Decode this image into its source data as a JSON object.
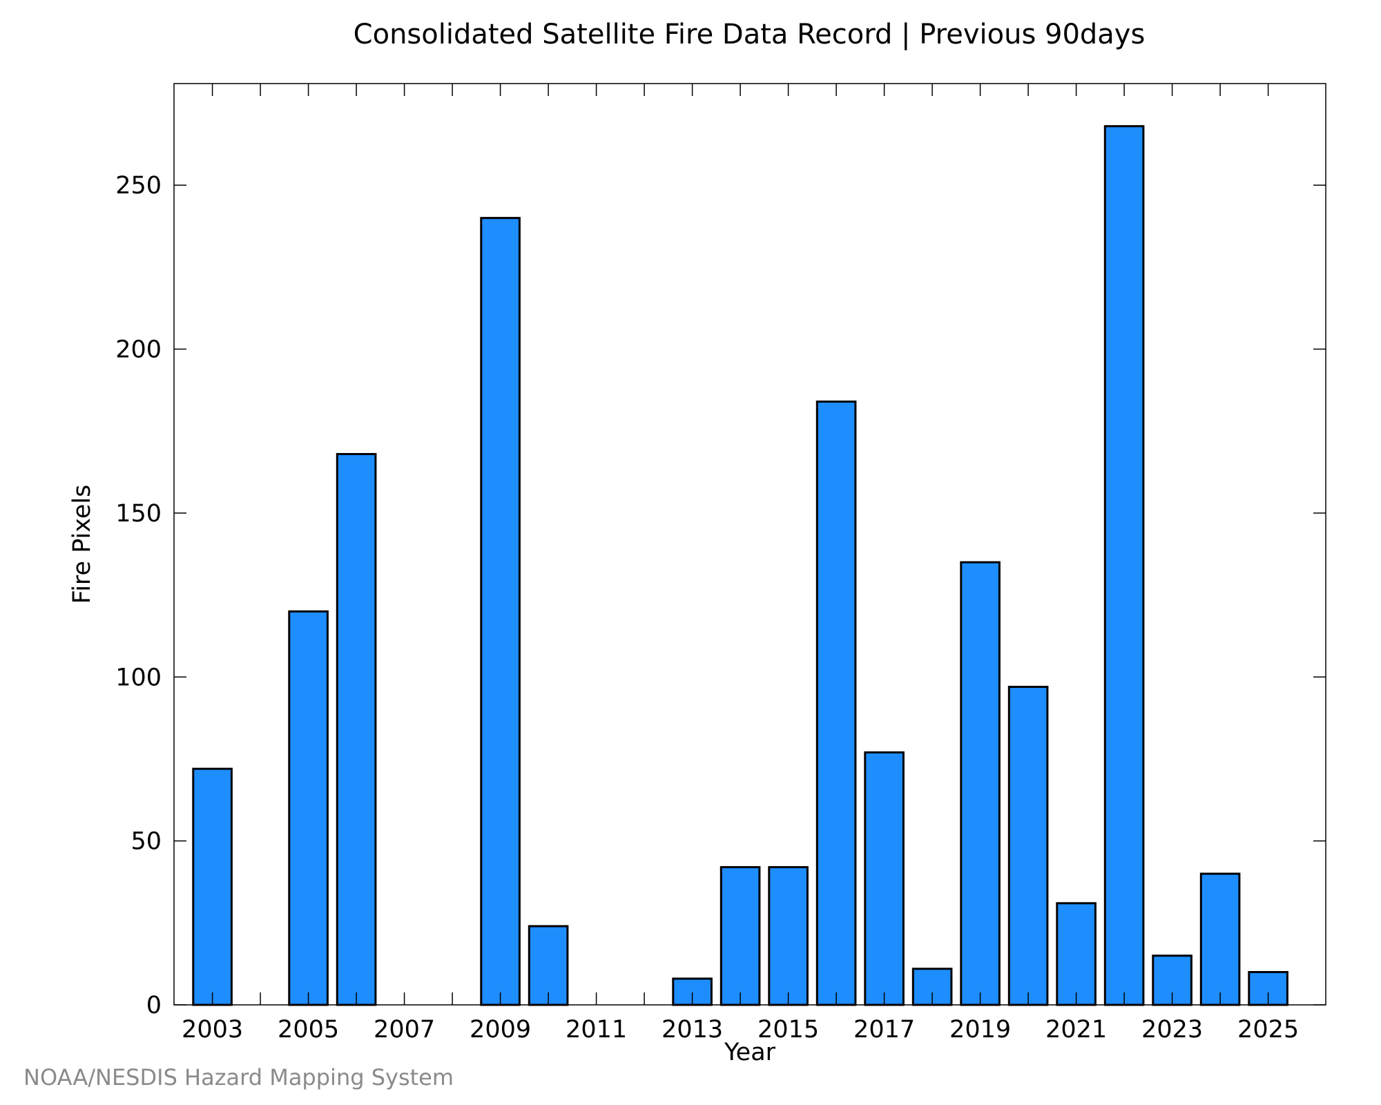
{
  "chart_data": {
    "type": "bar",
    "title": "Consolidated Satellite Fire Data Record | Previous 90days",
    "xlabel": "Year",
    "ylabel": "Fire Pixels",
    "categories": [
      "2003",
      "2004",
      "2005",
      "2006",
      "2007",
      "2008",
      "2009",
      "2010",
      "2011",
      "2012",
      "2013",
      "2014",
      "2015",
      "2016",
      "2017",
      "2018",
      "2019",
      "2020",
      "2021",
      "2022",
      "2023",
      "2024",
      "2025"
    ],
    "x_tick_labels": [
      "2003",
      "2005",
      "2007",
      "2009",
      "2011",
      "2013",
      "2015",
      "2017",
      "2019",
      "2021",
      "2023",
      "2025"
    ],
    "y_ticks": [
      0,
      50,
      100,
      150,
      200,
      250
    ],
    "values": [
      72,
      0,
      120,
      168,
      0,
      0,
      240,
      24,
      0,
      0,
      8,
      42,
      42,
      184,
      77,
      11,
      135,
      97,
      31,
      268,
      15,
      40,
      10
    ],
    "ylim": [
      0,
      281
    ],
    "xlim": [
      2002.2,
      2026.2
    ],
    "bar_color": "#1e8eff",
    "bar_edge_color": "#000000",
    "grid": false
  },
  "credit": "NOAA/NESDIS Hazard Mapping System"
}
